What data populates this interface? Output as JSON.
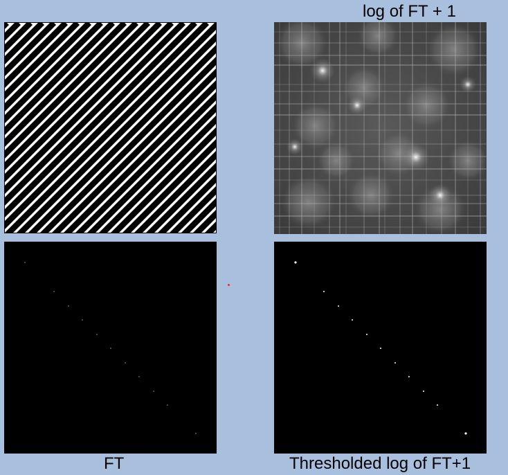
{
  "captions": {
    "top_right": "log of FT + 1",
    "bottom_left": "FT",
    "bottom_right": "Thresholded log of FT+1"
  },
  "colors": {
    "background": "#a8c0de",
    "stripe_dark": "#000000",
    "stripe_light": "#ffffff",
    "marker": "#ff2020"
  },
  "panels": [
    "diagonal-stripe-image",
    "log-ft-spectrum-image",
    "ft-magnitude-image",
    "thresholded-log-ft-image"
  ]
}
